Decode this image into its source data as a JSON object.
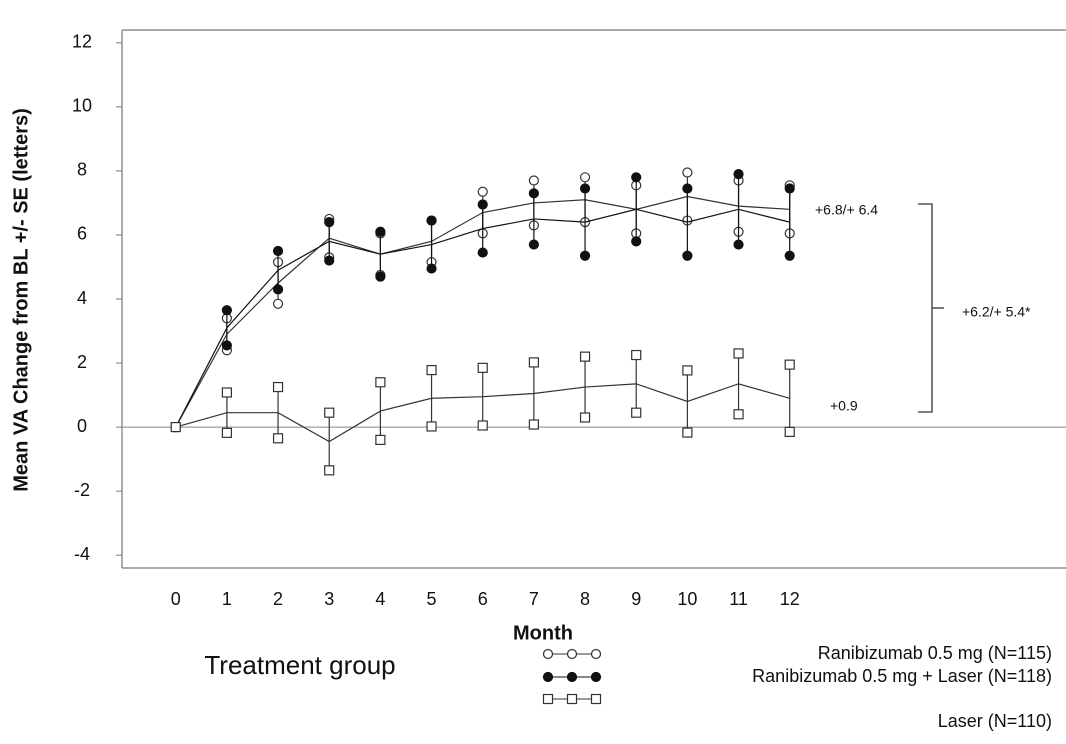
{
  "chart_data": {
    "type": "line",
    "y_label": "Mean VA Change from BL +/- SE (letters)",
    "x_label": "Month",
    "legend_title": "Treatment group",
    "x": [
      0,
      1,
      2,
      3,
      4,
      5,
      6,
      7,
      8,
      9,
      10,
      11,
      12
    ],
    "xlim": [
      -1.05,
      17.4
    ],
    "xticks": [
      0,
      1,
      2,
      3,
      4,
      5,
      6,
      7,
      8,
      9,
      10,
      11,
      12
    ],
    "ylim": [
      -4.4,
      12.4
    ],
    "yticks": [
      -4,
      -2,
      0,
      2,
      4,
      6,
      8,
      10,
      12
    ],
    "series": [
      {
        "name": "Ranibizumab 0.5 mg (N=115)",
        "color": "#333333",
        "marker": "open-circle",
        "values": [
          0,
          2.9,
          4.5,
          5.9,
          5.4,
          5.8,
          6.7,
          7.0,
          7.1,
          6.8,
          7.2,
          6.9,
          6.8
        ],
        "errors": [
          0,
          0.5,
          0.65,
          0.6,
          0.65,
          0.65,
          0.65,
          0.7,
          0.7,
          0.75,
          0.75,
          0.8,
          0.75
        ]
      },
      {
        "name": "Ranibizumab 0.5 mg + Laser (N=118)",
        "color": "#111111",
        "marker": "filled-circle",
        "values": [
          0,
          3.1,
          4.9,
          5.8,
          5.4,
          5.7,
          6.2,
          6.5,
          6.4,
          6.8,
          6.4,
          6.8,
          6.4
        ],
        "errors": [
          0,
          0.55,
          0.6,
          0.6,
          0.7,
          0.75,
          0.75,
          0.8,
          1.05,
          1.0,
          1.05,
          1.1,
          1.05
        ]
      },
      {
        "name": "Laser (N=110)",
        "color": "#333333",
        "marker": "open-square",
        "values": [
          0,
          0.45,
          0.45,
          -0.45,
          0.5,
          0.9,
          0.95,
          1.05,
          1.25,
          1.35,
          0.8,
          1.35,
          0.9
        ],
        "errors": [
          0,
          0.63,
          0.8,
          0.9,
          0.9,
          0.88,
          0.9,
          0.97,
          0.95,
          0.9,
          0.97,
          0.95,
          1.05
        ]
      }
    ],
    "annotations": [
      "+6.8/+ 6.4",
      "+6.2/+ 5.4*",
      "+0.9"
    ]
  }
}
